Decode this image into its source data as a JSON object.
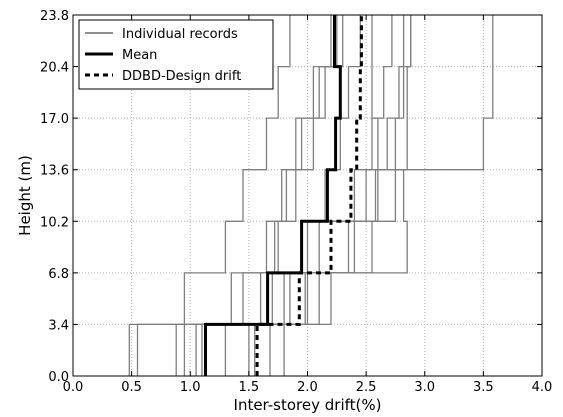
{
  "chart_data": {
    "type": "line",
    "title": "",
    "xlabel": "Inter-storey drift(%)",
    "ylabel": "Height (m)",
    "xlim": [
      0.0,
      4.0
    ],
    "ylim": [
      0.0,
      23.8
    ],
    "xticks": [
      "0.0",
      "0.5",
      "1.0",
      "1.5",
      "2.0",
      "2.5",
      "3.0",
      "3.5",
      "4.0"
    ],
    "yticks": [
      "0.0",
      "3.4",
      "6.8",
      "10.2",
      "13.6",
      "17.0",
      "20.4",
      "23.8"
    ],
    "grid": true,
    "legend_position": "top-left",
    "legend": [
      "Individual records",
      "Mean",
      "DDBD-Design drift"
    ],
    "storey_heights": [
      0.0,
      3.4,
      6.8,
      10.2,
      13.6,
      17.0,
      20.4,
      23.8
    ],
    "records": [
      {
        "values": [
          0.48,
          1.35,
          1.65,
          1.82,
          1.95,
          2.05,
          2.2
        ]
      },
      {
        "values": [
          0.55,
          1.45,
          1.95,
          2.15,
          2.28,
          2.35,
          2.45
        ]
      },
      {
        "values": [
          0.88,
          1.6,
          1.72,
          1.9,
          2.05,
          2.15,
          2.25
        ]
      },
      {
        "values": [
          0.95,
          0.95,
          1.3,
          1.45,
          1.65,
          1.75,
          1.85
        ]
      },
      {
        "values": [
          1.05,
          1.7,
          2.0,
          2.4,
          2.55,
          2.65,
          2.72
        ]
      },
      {
        "values": [
          1.1,
          2.1,
          2.55,
          2.6,
          2.85,
          2.85,
          2.88
        ]
      },
      {
        "values": [
          1.3,
          1.8,
          2.1,
          2.75,
          3.5,
          3.58,
          3.58
        ]
      },
      {
        "values": [
          1.5,
          1.85,
          2.35,
          2.5,
          2.68,
          2.78,
          2.82
        ]
      },
      {
        "values": [
          1.55,
          1.98,
          2.4,
          2.58,
          2.75,
          2.82,
          2.88
        ]
      },
      {
        "values": [
          1.68,
          2.2,
          2.85,
          2.82,
          2.6,
          2.55,
          2.55
        ]
      },
      {
        "values": [
          1.8,
          2.0,
          1.75,
          1.78,
          1.9,
          2.1,
          2.3
        ]
      }
    ],
    "mean": {
      "name": "Mean",
      "values": [
        1.13,
        1.66,
        1.95,
        2.17,
        2.24,
        2.28,
        2.23
      ]
    },
    "design": {
      "name": "DDBD-Design drift",
      "values": [
        1.57,
        1.93,
        2.2,
        2.37,
        2.42,
        2.45,
        2.46
      ]
    },
    "colors": {
      "records": "#7f7f7f",
      "mean": "#000000",
      "design": "#000000",
      "grid": "#b0b0b0"
    }
  }
}
